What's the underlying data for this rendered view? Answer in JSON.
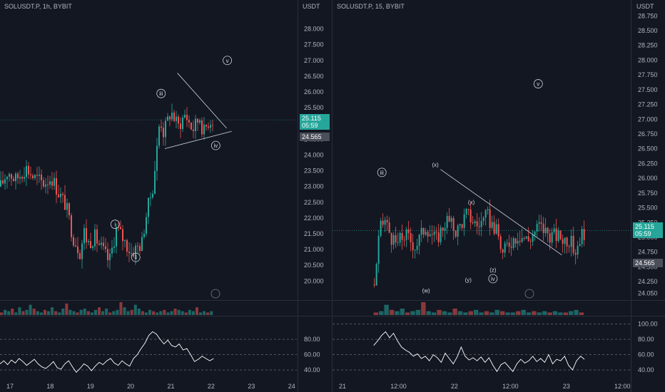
{
  "colors": {
    "background": "#131722",
    "up": "#26a69a",
    "down": "#ef5350",
    "text": "#b2b5be",
    "grid": "#1e222d",
    "separator": "#2a2e39",
    "rsi_line": "#ffffff",
    "rsi_levels": "#787b86",
    "ref_line": "#26a69a"
  },
  "chart_data": [
    {
      "type": "candlestick",
      "title": "SOLUSDT.P, 1h, BYBIT",
      "price_unit": "USDT",
      "y_ticks": [
        "28.000",
        "27.500",
        "27.000",
        "26.500",
        "26.000",
        "25.500",
        "25.000",
        "24.500",
        "24.000",
        "23.500",
        "23.000",
        "22.500",
        "22.000",
        "21.500",
        "21.000",
        "20.500",
        "20.000"
      ],
      "ylim": [
        19.6,
        28.6
      ],
      "x_ticks": [
        "17",
        "18",
        "19",
        "20",
        "21",
        "22",
        "23",
        "24"
      ],
      "x_domain": [
        16.6,
        24.8
      ],
      "current_price": "25.115",
      "countdown": "05:59",
      "low_price_label": "24.565",
      "current_price_value": 25.115,
      "low_price_value": 24.565,
      "path": [
        [
          16.6,
          23.0
        ],
        [
          16.8,
          23.5
        ],
        [
          17.0,
          23.2
        ],
        [
          17.3,
          23.6
        ],
        [
          17.5,
          23.3
        ],
        [
          17.8,
          23.1
        ],
        [
          18.0,
          23.3
        ],
        [
          18.2,
          22.8
        ],
        [
          18.4,
          22.4
        ],
        [
          18.6,
          21.4
        ],
        [
          18.8,
          20.9
        ],
        [
          18.9,
          21.6
        ],
        [
          19.0,
          21.2
        ],
        [
          19.2,
          21.4
        ],
        [
          19.4,
          21.0
        ],
        [
          19.6,
          20.6
        ],
        [
          19.8,
          21.7
        ],
        [
          20.0,
          21.3
        ],
        [
          20.2,
          20.9
        ],
        [
          20.5,
          21.2
        ],
        [
          20.6,
          22.0
        ],
        [
          20.8,
          23.0
        ],
        [
          20.9,
          24.0
        ],
        [
          21.0,
          25.2
        ],
        [
          21.1,
          24.7
        ],
        [
          21.3,
          25.4
        ],
        [
          21.5,
          24.9
        ],
        [
          21.7,
          25.3
        ],
        [
          21.9,
          24.8
        ],
        [
          22.1,
          25.2
        ],
        [
          22.2,
          24.7
        ],
        [
          22.35,
          25.1
        ],
        [
          22.5,
          25.115
        ]
      ],
      "waves": [
        {
          "label": "i",
          "x": 19.78,
          "y": 21.8
        },
        {
          "label": "ii",
          "x": 20.35,
          "y": 20.75
        },
        {
          "label": "iii",
          "x": 21.05,
          "y": 25.95
        },
        {
          "label": "iv",
          "x": 22.56,
          "y": 24.3
        },
        {
          "label": "v",
          "x": 22.88,
          "y": 27.0
        }
      ],
      "trendlines": [
        [
          [
            21.5,
            26.6
          ],
          [
            22.86,
            24.85
          ]
        ],
        [
          [
            21.15,
            24.2
          ],
          [
            23.0,
            24.75
          ]
        ]
      ],
      "volume": [
        2,
        4,
        3,
        5,
        2,
        6,
        3,
        4,
        8,
        5,
        3,
        2,
        4,
        3,
        6,
        3,
        2,
        5,
        9,
        4,
        3,
        2,
        4,
        5,
        3,
        2,
        4,
        6,
        3,
        5,
        2,
        3,
        4,
        10,
        6,
        3,
        4,
        8,
        5,
        3,
        2,
        4,
        3,
        2,
        3,
        4,
        2,
        3,
        5,
        4,
        3,
        2,
        4,
        3,
        6,
        2,
        3,
        2,
        3
      ],
      "rsi": {
        "ylim": [
          28,
          108
        ],
        "levels": [
          "80.00",
          "60.00",
          "40.00"
        ],
        "level_values": [
          80,
          60,
          40
        ],
        "values": [
          48,
          52,
          47,
          53,
          49,
          55,
          51,
          46,
          50,
          54,
          48,
          44,
          42,
          46,
          51,
          43,
          41,
          48,
          52,
          44,
          37,
          42,
          48,
          45,
          39,
          45,
          50,
          47,
          52,
          55,
          49,
          46,
          52,
          48,
          45,
          55,
          60,
          68,
          75,
          85,
          90,
          87,
          80,
          74,
          79,
          72,
          70,
          74,
          66,
          68,
          60,
          51,
          54,
          58,
          55,
          52,
          55
        ]
      }
    },
    {
      "type": "candlestick",
      "title": "SOLUSDT.P, 15, BYBIT",
      "price_unit": "USDT",
      "y_ticks": [
        "28.750",
        "28.500",
        "28.250",
        "28.000",
        "27.750",
        "27.500",
        "27.250",
        "27.000",
        "26.750",
        "26.500",
        "26.250",
        "26.000",
        "25.750",
        "25.500",
        "25.250",
        "25.000",
        "24.750",
        "24.500",
        "24.250",
        "24.050"
      ],
      "ylim": [
        23.95,
        28.85
      ],
      "x_ticks": [
        "21",
        "12:00",
        "22",
        "12:00",
        "23",
        "12:00"
      ],
      "x_domain": [
        20.7,
        23.6
      ],
      "current_price": "25.115",
      "countdown": "05:59",
      "low_price_label": "24.565",
      "current_price_value": 25.115,
      "low_price_value": 24.565,
      "path": [
        [
          21.1,
          24.2
        ],
        [
          21.15,
          25.1
        ],
        [
          21.2,
          25.3
        ],
        [
          21.3,
          24.85
        ],
        [
          21.4,
          25.05
        ],
        [
          21.5,
          24.85
        ],
        [
          21.6,
          25.2
        ],
        [
          21.7,
          24.95
        ],
        [
          21.8,
          25.3
        ],
        [
          21.9,
          25.1
        ],
        [
          22.0,
          25.4
        ],
        [
          22.1,
          25.2
        ],
        [
          22.2,
          25.35
        ],
        [
          22.3,
          25.05
        ],
        [
          22.35,
          24.7
        ],
        [
          22.4,
          24.9
        ],
        [
          22.5,
          25.05
        ],
        [
          22.6,
          24.95
        ],
        [
          22.7,
          25.2
        ],
        [
          22.8,
          25.05
        ],
        [
          22.9,
          25.0
        ],
        [
          23.0,
          24.95
        ],
        [
          23.05,
          24.75
        ],
        [
          23.1,
          25.0
        ],
        [
          23.15,
          25.115
        ]
      ],
      "waves": [
        {
          "label": "iii",
          "x": 21.18,
          "y": 26.1
        },
        {
          "label": "(x)",
          "x": 21.7,
          "y": 26.23
        },
        {
          "label": "(x)",
          "x": 22.05,
          "y": 25.6
        },
        {
          "label": "(w)",
          "x": 21.61,
          "y": 24.1
        },
        {
          "label": "(y)",
          "x": 22.02,
          "y": 24.28
        },
        {
          "label": "(z)",
          "x": 22.26,
          "y": 24.45
        },
        {
          "label": "iv",
          "x": 22.26,
          "y": 24.3
        },
        {
          "label": "v",
          "x": 22.7,
          "y": 27.6
        }
      ],
      "trendlines": [
        [
          [
            21.75,
            26.15
          ],
          [
            22.93,
            24.7
          ]
        ]
      ],
      "volume": [
        2,
        3,
        8,
        4,
        3,
        5,
        2,
        3,
        4,
        10,
        3,
        2,
        4,
        3,
        2,
        5,
        3,
        2,
        3,
        4,
        2,
        3,
        2,
        4,
        3,
        2,
        2,
        3,
        4,
        2,
        3,
        2,
        3,
        2,
        3,
        2,
        2,
        3,
        4,
        2
      ],
      "rsi": {
        "ylim": [
          28,
          108
        ],
        "levels": [
          "100.00",
          "80.00",
          "60.00",
          "40.00"
        ],
        "level_values": [
          100,
          80,
          60,
          40
        ],
        "values": [
          72,
          78,
          85,
          90,
          82,
          88,
          78,
          70,
          66,
          63,
          58,
          61,
          55,
          58,
          52,
          60,
          56,
          50,
          62,
          55,
          48,
          57,
          70,
          58,
          53,
          56,
          52,
          57,
          50,
          56,
          46,
          38,
          47,
          50,
          44,
          38,
          48,
          54,
          49,
          52,
          58,
          51,
          55,
          50,
          60,
          48,
          54,
          52,
          58,
          46,
          40,
          52,
          58,
          54
        ]
      }
    }
  ]
}
